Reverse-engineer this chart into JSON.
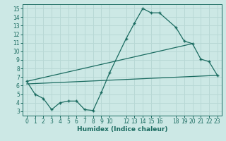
{
  "xlabel": "Humidex (Indice chaleur)",
  "bg_color": "#cce8e5",
  "line_color": "#1a6b60",
  "grid_color": "#b8d8d5",
  "xlim": [
    -0.5,
    23.5
  ],
  "ylim": [
    2.5,
    15.5
  ],
  "xticks": [
    0,
    1,
    2,
    3,
    4,
    5,
    6,
    7,
    8,
    9,
    10,
    12,
    13,
    14,
    15,
    16,
    18,
    19,
    20,
    21,
    22,
    23
  ],
  "yticks": [
    3,
    4,
    5,
    6,
    7,
    8,
    9,
    10,
    11,
    12,
    13,
    14,
    15
  ],
  "series_main": {
    "x": [
      0,
      1,
      2,
      3,
      4,
      5,
      6,
      7,
      8,
      9,
      10,
      12,
      13,
      14,
      15,
      16,
      18,
      19,
      20,
      21,
      22,
      23
    ],
    "y": [
      6.5,
      5.0,
      4.5,
      3.2,
      4.0,
      4.2,
      4.2,
      3.2,
      3.1,
      5.2,
      7.5,
      11.5,
      13.3,
      15.0,
      14.5,
      14.5,
      12.8,
      11.2,
      10.9,
      9.1,
      8.8,
      7.2
    ]
  },
  "series_line1": {
    "x": [
      0,
      20
    ],
    "y": [
      6.5,
      10.9
    ]
  },
  "series_line2": {
    "x": [
      0,
      23
    ],
    "y": [
      6.2,
      7.2
    ]
  }
}
